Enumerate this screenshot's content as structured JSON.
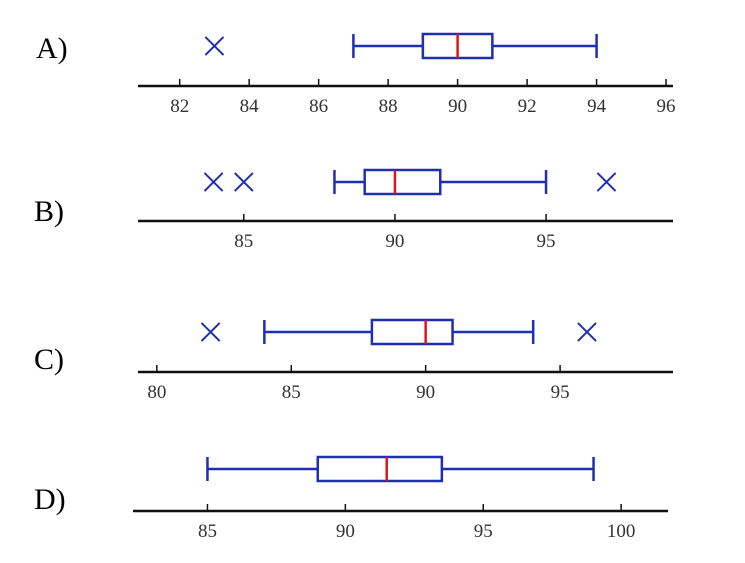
{
  "chart_data": [
    {
      "type": "boxplot",
      "label": "A)",
      "xlim": [
        80.8,
        96.2
      ],
      "ticks": [
        82,
        84,
        86,
        88,
        90,
        92,
        94,
        96
      ],
      "tick_labels": [
        "82",
        "84",
        "86",
        "88",
        "90",
        "92",
        "94",
        "96"
      ],
      "whisker_low": 87,
      "q1": 89,
      "median": 90,
      "q3": 91,
      "whisker_high": 94,
      "outliers": [
        83
      ]
    },
    {
      "type": "boxplot",
      "label": "B)",
      "xlim": [
        81.5,
        99.2
      ],
      "ticks": [
        85,
        90,
        95
      ],
      "tick_labels": [
        "85",
        "90",
        "95"
      ],
      "whisker_low": 88,
      "q1": 89,
      "median": 90,
      "q3": 91.5,
      "whisker_high": 95,
      "outliers": [
        84,
        85,
        97
      ]
    },
    {
      "type": "boxplot",
      "label": "C)",
      "xlim": [
        79.3,
        99.2
      ],
      "ticks": [
        80,
        85,
        90,
        95
      ],
      "tick_labels": [
        "80",
        "85",
        "90",
        "95"
      ],
      "whisker_low": 84,
      "q1": 88,
      "median": 90,
      "q3": 91,
      "whisker_high": 94,
      "outliers": [
        82,
        96
      ]
    },
    {
      "type": "boxplot",
      "label": "D)",
      "xlim": [
        82.3,
        101.7
      ],
      "ticks": [
        85,
        90,
        95,
        100
      ],
      "tick_labels": [
        "85",
        "90",
        "95",
        "100"
      ],
      "whisker_low": 85,
      "q1": 89,
      "median": 91.5,
      "q3": 93.5,
      "whisker_high": 99,
      "outliers": []
    }
  ],
  "colors": {
    "box": "#1f2fb0",
    "median": "#e0141e",
    "axis": "#111111"
  }
}
